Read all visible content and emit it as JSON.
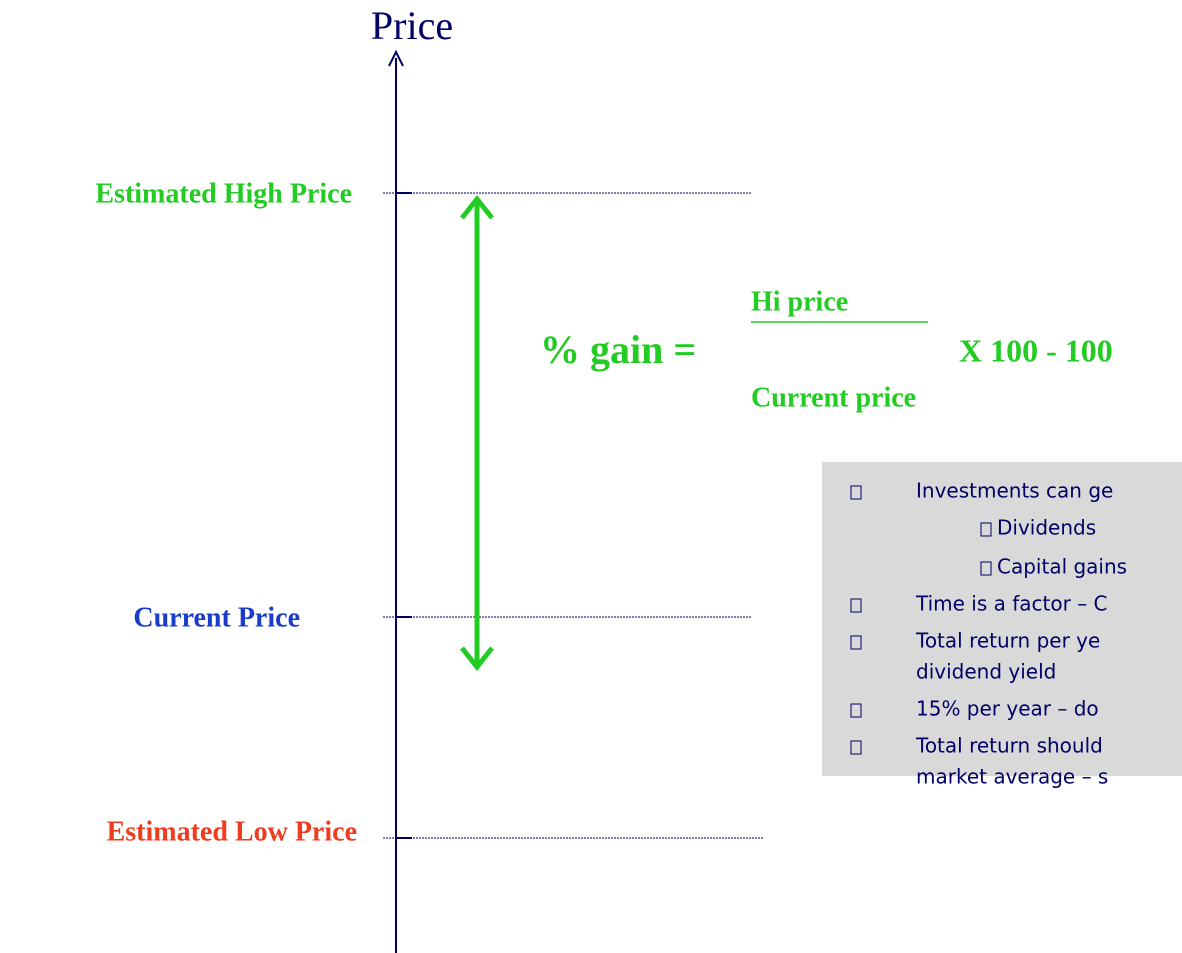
{
  "axis": {
    "label": "Price"
  },
  "levels": {
    "high": "Estimated High Price",
    "current": "Current Price",
    "low": "Estimated Low Price"
  },
  "formula": {
    "lhs": "% gain =",
    "numerator": "Hi price",
    "denominator": "Current price",
    "rhs": "X 100 - 100"
  },
  "bullets": [
    {
      "level": 1,
      "lines": [
        "Investments can ge"
      ]
    },
    {
      "level": 2,
      "lines": [
        "Dividends"
      ]
    },
    {
      "level": 2,
      "lines": [
        "Capital gains"
      ]
    },
    {
      "level": 1,
      "lines": [
        "Time is a factor – C"
      ]
    },
    {
      "level": 1,
      "lines": [
        "Total return per ye",
        "dividend yield"
      ]
    },
    {
      "level": 1,
      "lines": [
        "15% per year – do"
      ]
    },
    {
      "level": 1,
      "lines": [
        "Total return should",
        "market average – s"
      ]
    }
  ]
}
